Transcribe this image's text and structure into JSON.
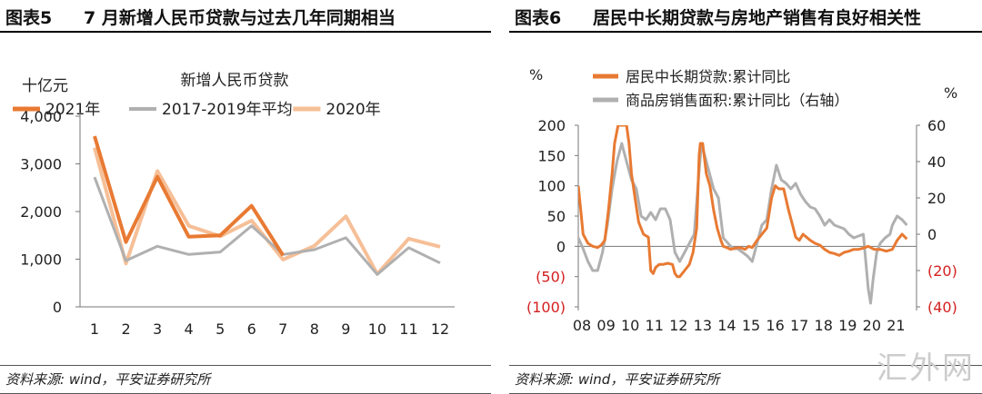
{
  "left": {
    "fig_no": "图表5",
    "title": "7 月新增人民币贷款与过去几年同期相当",
    "source": "资料来源: wind，平安证券研究所"
  },
  "right": {
    "fig_no": "图表6",
    "title": "居民中长期贷款与房地产销售有良好相关性",
    "source": "资料来源: wind，平安证券研究所"
  },
  "watermark": "汇外网",
  "chart_data": [
    {
      "type": "line",
      "title": "新增人民币贷款",
      "ylabel": "十亿元",
      "xlabel": "",
      "ylim": [
        0,
        4000
      ],
      "yticks": [
        0,
        1000,
        2000,
        3000,
        4000
      ],
      "ytick_labels": [
        "0",
        "1,000",
        "2,000",
        "3,000",
        "4,000"
      ],
      "x": [
        1,
        2,
        3,
        4,
        5,
        6,
        7,
        8,
        9,
        10,
        11,
        12
      ],
      "legend_position": "top",
      "grid": false,
      "series": [
        {
          "name": "2021年",
          "color": "#e87a33",
          "width": 4,
          "values": [
            3580,
            1360,
            2730,
            1470,
            1500,
            2120,
            1080,
            null,
            null,
            null,
            null,
            null
          ]
        },
        {
          "name": "2017-2019年平均",
          "color": "#b0b0b0",
          "width": 3,
          "values": [
            2720,
            970,
            1270,
            1100,
            1150,
            1700,
            1100,
            1200,
            1450,
            680,
            1240,
            920
          ]
        },
        {
          "name": "2020年",
          "color": "#f6bf97",
          "width": 4,
          "values": [
            3340,
            910,
            2850,
            1700,
            1480,
            1810,
            992,
            1280,
            1900,
            689,
            1430,
            1260
          ]
        }
      ]
    },
    {
      "type": "line",
      "title": "",
      "ylabel": "%",
      "ylabel_right": "%",
      "ylim": [
        -100,
        200
      ],
      "ylim_right": [
        -40,
        60
      ],
      "yticks": [
        -100,
        -50,
        0,
        50,
        100,
        150,
        200
      ],
      "ytick_labels": [
        "(100)",
        "(50)",
        "0",
        "50",
        "100",
        "150",
        "200"
      ],
      "yticks_right": [
        -40,
        -20,
        0,
        20,
        40,
        60
      ],
      "ytick_labels_right": [
        "(40)",
        "(20)",
        "0",
        "20",
        "40",
        "60"
      ],
      "negative_tick_color": "#d42020",
      "xlim": [
        2008,
        2022
      ],
      "x_tick_labels": [
        "08",
        "09",
        "10",
        "11",
        "12",
        "13",
        "14",
        "15",
        "16",
        "17",
        "18",
        "19",
        "20",
        "21"
      ],
      "legend_position": "top-left",
      "grid": false,
      "series": [
        {
          "name": "居民中长期贷款:累计同比",
          "axis": "left",
          "color": "#e87a33",
          "width": 3,
          "x": [
            2008.0,
            2008.1,
            2008.2,
            2008.4,
            2008.6,
            2008.8,
            2008.95,
            2009.1,
            2009.25,
            2009.4,
            2009.5,
            2009.65,
            2009.8,
            2010.0,
            2010.1,
            2010.2,
            2010.35,
            2010.5,
            2010.7,
            2010.9,
            2011.0,
            2011.1,
            2011.2,
            2011.35,
            2011.5,
            2011.7,
            2011.9,
            2012.0,
            2012.1,
            2012.2,
            2012.4,
            2012.6,
            2012.75,
            2012.9,
            2013.0,
            2013.05,
            2013.15,
            2013.3,
            2013.45,
            2013.6,
            2013.75,
            2013.9,
            2014.0,
            2014.15,
            2014.3,
            2014.5,
            2014.7,
            2014.9,
            2015.05,
            2015.2,
            2015.4,
            2015.6,
            2015.8,
            2016.0,
            2016.15,
            2016.3,
            2016.5,
            2016.7,
            2016.9,
            2017.0,
            2017.15,
            2017.3,
            2017.45,
            2017.6,
            2017.8,
            2018.0,
            2018.2,
            2018.4,
            2018.6,
            2018.8,
            2019.0,
            2019.2,
            2019.4,
            2019.6,
            2019.8,
            2020.0,
            2020.1,
            2020.25,
            2020.5,
            2020.75,
            2021.0,
            2021.2,
            2021.4,
            2021.6
          ],
          "values": [
            100,
            60,
            20,
            5,
            0,
            -2,
            2,
            10,
            60,
            120,
            170,
            200,
            200,
            200,
            170,
            120,
            80,
            40,
            20,
            15,
            -40,
            -45,
            -35,
            -30,
            -30,
            -28,
            -30,
            -45,
            -50,
            -50,
            -40,
            -30,
            -10,
            30,
            150,
            170,
            170,
            120,
            100,
            60,
            30,
            10,
            0,
            -2,
            -5,
            -3,
            -2,
            -5,
            0,
            -2,
            10,
            20,
            30,
            80,
            100,
            95,
            95,
            60,
            30,
            15,
            10,
            20,
            15,
            10,
            5,
            2,
            -5,
            -10,
            -12,
            -15,
            -10,
            -8,
            -5,
            -5,
            -3,
            0,
            -2,
            -5,
            -5,
            -8,
            -5,
            10,
            20,
            12
          ]
        },
        {
          "name": "商品房销售面积:累计同比（右轴）",
          "axis": "right",
          "color": "#b0b0b0",
          "width": 3,
          "x": [
            2008.0,
            2008.2,
            2008.4,
            2008.6,
            2008.8,
            2009.0,
            2009.2,
            2009.4,
            2009.6,
            2009.8,
            2010.0,
            2010.2,
            2010.4,
            2010.6,
            2010.8,
            2011.0,
            2011.2,
            2011.4,
            2011.6,
            2011.8,
            2012.0,
            2012.2,
            2012.4,
            2012.6,
            2012.8,
            2013.0,
            2013.1,
            2013.2,
            2013.4,
            2013.6,
            2013.8,
            2014.0,
            2014.2,
            2014.4,
            2014.6,
            2014.8,
            2015.0,
            2015.2,
            2015.4,
            2015.6,
            2015.8,
            2016.0,
            2016.2,
            2016.4,
            2016.6,
            2016.8,
            2017.0,
            2017.2,
            2017.4,
            2017.6,
            2017.8,
            2018.0,
            2018.2,
            2018.4,
            2018.6,
            2018.8,
            2019.0,
            2019.2,
            2019.4,
            2019.6,
            2019.8,
            2020.0,
            2020.1,
            2020.2,
            2020.35,
            2020.5,
            2020.7,
            2020.9,
            2021.0,
            2021.2,
            2021.4,
            2021.6
          ],
          "values": [
            -2,
            -8,
            -15,
            -20,
            -20,
            -10,
            5,
            25,
            40,
            50,
            40,
            30,
            25,
            10,
            8,
            12,
            8,
            14,
            14,
            8,
            -10,
            -15,
            -10,
            -5,
            0,
            35,
            50,
            45,
            35,
            25,
            20,
            -2,
            -5,
            -8,
            -8,
            -10,
            -12,
            -15,
            -5,
            5,
            8,
            25,
            38,
            30,
            28,
            25,
            28,
            22,
            18,
            15,
            14,
            10,
            5,
            8,
            5,
            4,
            3,
            0,
            -2,
            -1,
            0,
            -30,
            -38,
            -25,
            -10,
            -5,
            -2,
            0,
            5,
            10,
            8,
            5
          ]
        }
      ]
    }
  ]
}
